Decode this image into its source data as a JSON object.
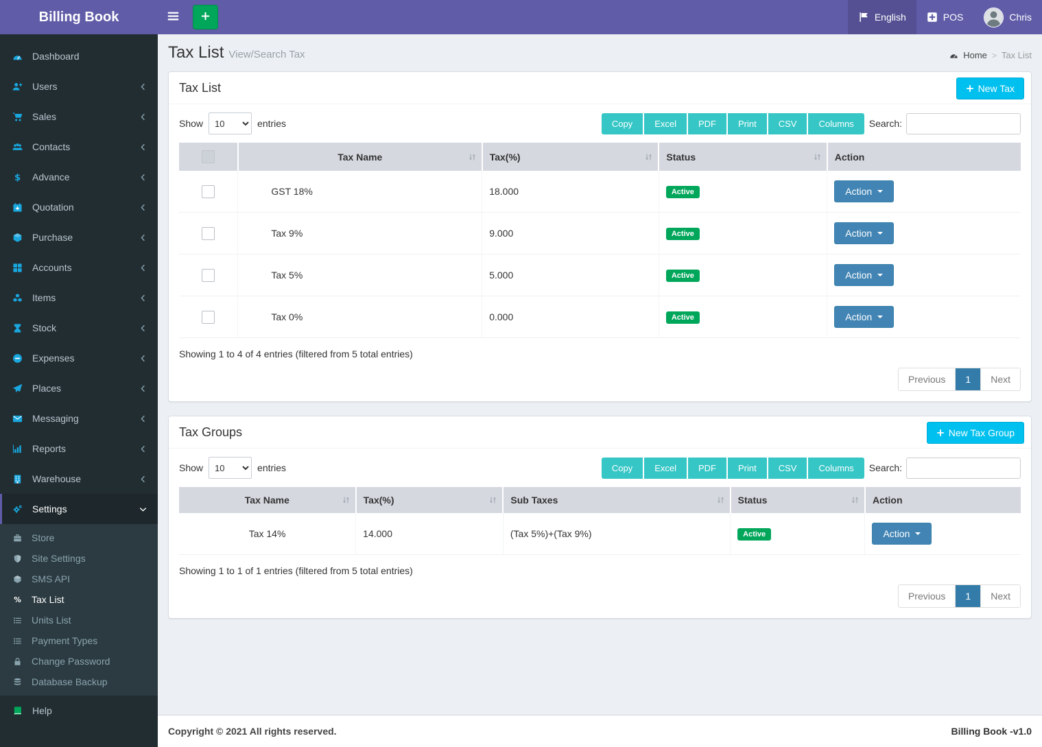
{
  "app": {
    "title": "Billing Book"
  },
  "topbar": {
    "language": "English",
    "pos": "POS",
    "user": "Chris"
  },
  "page": {
    "title": "Tax List",
    "subtitle": "View/Search Tax",
    "breadcrumb": {
      "home": "Home",
      "separator": ">",
      "current": "Tax List"
    }
  },
  "sidebar": {
    "items": [
      {
        "label": "Dashboard",
        "icon": "gauge"
      },
      {
        "label": "Users",
        "icon": "user-plus",
        "expandable": true
      },
      {
        "label": "Sales",
        "icon": "cart",
        "expandable": true
      },
      {
        "label": "Contacts",
        "icon": "users",
        "expandable": true
      },
      {
        "label": "Advance",
        "icon": "dollar",
        "expandable": true
      },
      {
        "label": "Quotation",
        "icon": "calendar-plus",
        "expandable": true
      },
      {
        "label": "Purchase",
        "icon": "cube",
        "expandable": true
      },
      {
        "label": "Accounts",
        "icon": "grid",
        "expandable": true
      },
      {
        "label": "Items",
        "icon": "cubes",
        "expandable": true
      },
      {
        "label": "Stock",
        "icon": "hourglass",
        "expandable": true
      },
      {
        "label": "Expenses",
        "icon": "minus-circle",
        "expandable": true
      },
      {
        "label": "Places",
        "icon": "paper-plane",
        "expandable": true
      },
      {
        "label": "Messaging",
        "icon": "envelope",
        "expandable": true
      },
      {
        "label": "Reports",
        "icon": "bar-chart",
        "expandable": true
      },
      {
        "label": "Warehouse",
        "icon": "building",
        "expandable": true
      },
      {
        "label": "Settings",
        "icon": "gears",
        "expandable": true,
        "expanded": true,
        "active": true,
        "children": [
          {
            "label": "Store",
            "icon": "briefcase"
          },
          {
            "label": "Site Settings",
            "icon": "shield"
          },
          {
            "label": "SMS API",
            "icon": "cube"
          },
          {
            "label": "Tax List",
            "icon": "percent",
            "active": true
          },
          {
            "label": "Units List",
            "icon": "list"
          },
          {
            "label": "Payment Types",
            "icon": "list"
          },
          {
            "label": "Change Password",
            "icon": "lock"
          },
          {
            "label": "Database Backup",
            "icon": "database"
          }
        ]
      },
      {
        "label": "Help",
        "icon": "book",
        "icon_color": "#00a65a"
      }
    ]
  },
  "tax_list": {
    "title": "Tax List",
    "new_button": "New Tax",
    "show_label": "Show",
    "entries_label": "entries",
    "page_length": "10",
    "export_buttons": [
      "Copy",
      "Excel",
      "PDF",
      "Print",
      "CSV",
      "Columns"
    ],
    "search_label": "Search:",
    "search_value": "",
    "columns": [
      "Tax Name",
      "Tax(%)",
      "Status",
      "Action"
    ],
    "rows": [
      {
        "name": "GST 18%",
        "rate": "18.000",
        "status": "Active",
        "action": "Action"
      },
      {
        "name": "Tax 9%",
        "rate": "9.000",
        "status": "Active",
        "action": "Action"
      },
      {
        "name": "Tax 5%",
        "rate": "5.000",
        "status": "Active",
        "action": "Action"
      },
      {
        "name": "Tax 0%",
        "rate": "0.000",
        "status": "Active",
        "action": "Action"
      }
    ],
    "summary": "Showing 1 to 4 of 4 entries (filtered from 5 total entries)",
    "pagination": {
      "previous": "Previous",
      "page": "1",
      "next": "Next"
    }
  },
  "tax_groups": {
    "title": "Tax Groups",
    "new_button": "New Tax Group",
    "show_label": "Show",
    "entries_label": "entries",
    "page_length": "10",
    "export_buttons": [
      "Copy",
      "Excel",
      "PDF",
      "Print",
      "CSV",
      "Columns"
    ],
    "search_label": "Search:",
    "search_value": "",
    "columns": [
      "Tax Name",
      "Tax(%)",
      "Sub Taxes",
      "Status",
      "Action"
    ],
    "rows": [
      {
        "name": "Tax 14%",
        "rate": "14.000",
        "sub_taxes": "(Tax 5%)+(Tax 9%)",
        "status": "Active",
        "action": "Action"
      }
    ],
    "summary": "Showing 1 to 1 of 1 entries (filtered from 5 total entries)",
    "pagination": {
      "previous": "Previous",
      "page": "1",
      "next": "Next"
    }
  },
  "footer": {
    "left": "Copyright © 2021 All rights reserved.",
    "right": "Billing Book -v1.0"
  },
  "colors": {
    "header_purple": "#605ca8",
    "sidebar_dark": "#222d32",
    "submenu_dark": "#2c3b41",
    "export_teal": "#36c6c6",
    "new_button_cyan": "#00c0ef",
    "action_blue": "#4285b4",
    "active_green": "#00a65a",
    "pagination_active": "#337ca9"
  }
}
